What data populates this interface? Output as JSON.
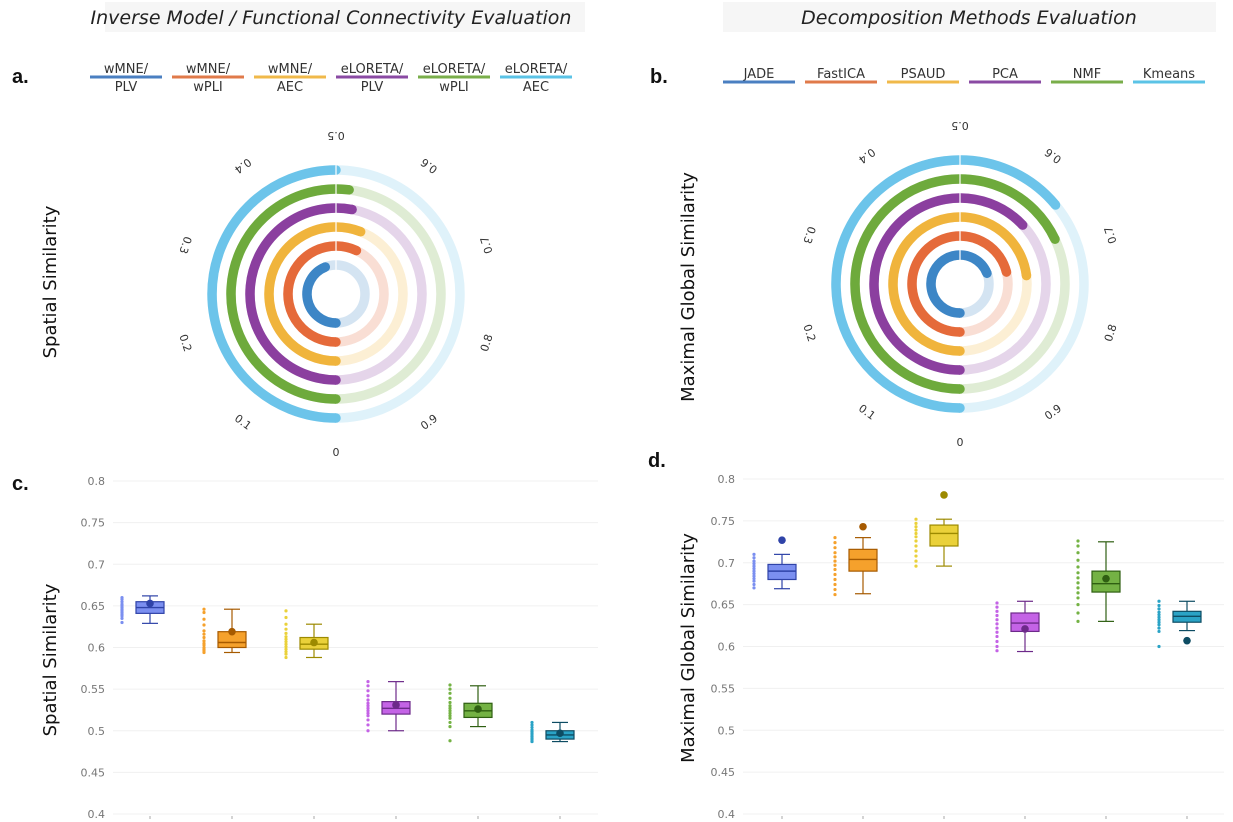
{
  "titles": {
    "left": "Inverse Model / Functional Connectivity Evaluation",
    "right": "Decomposition Methods Evaluation"
  },
  "panel_labels": {
    "a": "a.",
    "b": "b.",
    "c": "c.",
    "d": "d."
  },
  "legend_left": [
    {
      "line1": "wMNE/",
      "line2": "PLV",
      "color": "#4a7fc1"
    },
    {
      "line1": "wMNE/",
      "line2": "wPLI",
      "color": "#e07a4a"
    },
    {
      "line1": "wMNE/",
      "line2": "AEC",
      "color": "#f0b94a"
    },
    {
      "line1": "eLORETA/",
      "line2": "PLV",
      "color": "#8a4aa3"
    },
    {
      "line1": "eLORETA/",
      "line2": "wPLI",
      "color": "#79ae4a"
    },
    {
      "line1": "eLORETA/",
      "line2": "AEC",
      "color": "#5bc3e6"
    }
  ],
  "legend_right": [
    {
      "line1": "JADE",
      "color": "#4a7fc1"
    },
    {
      "line1": "FastICA",
      "color": "#e07a4a"
    },
    {
      "line1": "PSAUD",
      "color": "#f0b94a"
    },
    {
      "line1": "PCA",
      "color": "#8a4aa3"
    },
    {
      "line1": "NMF",
      "color": "#79ae4a"
    },
    {
      "line1": "Kmeans",
      "color": "#5bc3e6"
    }
  ],
  "chart_data": [
    {
      "type": "radial-bar",
      "panel": "a",
      "ylabel": "Spatial Similarity",
      "tick_labels": [
        "0",
        "0.1",
        "0.2",
        "0.3",
        "0.4",
        "0.5",
        "0.6",
        "0.7",
        "0.8",
        "0.9"
      ],
      "series_colors": [
        "#3d86c6",
        "#e56a3a",
        "#f0b43c",
        "#8b3f9f",
        "#6eaa3c",
        "#6cc4ea"
      ],
      "values": [
        0.44,
        0.57,
        0.56,
        0.53,
        0.52,
        0.5
      ]
    },
    {
      "type": "radial-bar",
      "panel": "b",
      "ylabel": "Maximal Global Similarity",
      "tick_labels": [
        "0",
        "0.1",
        "0.2",
        "0.3",
        "0.4",
        "0.5",
        "0.6",
        "0.7",
        "0.8",
        "0.9"
      ],
      "series_colors": [
        "#3d86c6",
        "#e56a3a",
        "#f0b43c",
        "#8b3f9f",
        "#6eaa3c",
        "#6cc4ea"
      ],
      "values": [
        0.69,
        0.71,
        0.73,
        0.63,
        0.68,
        0.64
      ]
    },
    {
      "type": "box",
      "panel": "c",
      "ylabel": "Spatial Similarity",
      "ylim": [
        0.4,
        0.8
      ],
      "yticks": [
        "0.4",
        "0.45",
        "0.5",
        "0.55",
        "0.6",
        "0.65",
        "0.7",
        "0.75",
        "0.8"
      ],
      "boxes": [
        {
          "fill": "#7b8ff0",
          "stroke": "#2f43a8",
          "q1": 0.641,
          "median": 0.648,
          "q3": 0.655,
          "low": 0.629,
          "high": 0.662,
          "mean": 0.653,
          "points": [
            0.63,
            0.635,
            0.638,
            0.64,
            0.642,
            0.644,
            0.646,
            0.648,
            0.65,
            0.652,
            0.655,
            0.658,
            0.66
          ]
        },
        {
          "fill": "#f5a12c",
          "stroke": "#a65a00",
          "q1": 0.6,
          "median": 0.606,
          "q3": 0.619,
          "low": 0.594,
          "high": 0.646,
          "mean": 0.619,
          "points": [
            0.594,
            0.596,
            0.598,
            0.6,
            0.603,
            0.605,
            0.608,
            0.612,
            0.616,
            0.62,
            0.627,
            0.634,
            0.642,
            0.646
          ]
        },
        {
          "fill": "#ead13a",
          "stroke": "#9c8a00",
          "q1": 0.598,
          "median": 0.604,
          "q3": 0.612,
          "low": 0.588,
          "high": 0.628,
          "mean": 0.606,
          "points": [
            0.588,
            0.592,
            0.595,
            0.598,
            0.601,
            0.604,
            0.607,
            0.61,
            0.613,
            0.617,
            0.622,
            0.628,
            0.636,
            0.644
          ]
        },
        {
          "fill": "#c463e6",
          "stroke": "#6d2a8a",
          "q1": 0.52,
          "median": 0.527,
          "q3": 0.535,
          "low": 0.5,
          "high": 0.559,
          "mean": 0.531,
          "points": [
            0.5,
            0.507,
            0.513,
            0.518,
            0.521,
            0.524,
            0.527,
            0.53,
            0.533,
            0.537,
            0.542,
            0.548,
            0.554,
            0.559
          ]
        },
        {
          "fill": "#74b244",
          "stroke": "#2f5f12",
          "q1": 0.516,
          "median": 0.524,
          "q3": 0.533,
          "low": 0.505,
          "high": 0.554,
          "mean": 0.526,
          "points": [
            0.488,
            0.505,
            0.51,
            0.515,
            0.518,
            0.521,
            0.524,
            0.527,
            0.53,
            0.534,
            0.539,
            0.545,
            0.55,
            0.555
          ]
        },
        {
          "fill": "#2aa3c6",
          "stroke": "#0d4c63",
          "q1": 0.49,
          "median": 0.495,
          "q3": 0.5,
          "low": 0.487,
          "high": 0.51,
          "mean": 0.497,
          "points": [
            0.487,
            0.489,
            0.491,
            0.493,
            0.495,
            0.497,
            0.499,
            0.501,
            0.504,
            0.507,
            0.51
          ]
        }
      ]
    },
    {
      "type": "box",
      "panel": "d",
      "ylabel": "Maximal Global Similarity",
      "ylim": [
        0.4,
        0.8
      ],
      "yticks": [
        "0.4",
        "0.45",
        "0.5",
        "0.55",
        "0.6",
        "0.65",
        "0.7",
        "0.75",
        "0.8"
      ],
      "boxes": [
        {
          "fill": "#7b8ff0",
          "stroke": "#2f43a8",
          "q1": 0.68,
          "median": 0.69,
          "q3": 0.698,
          "low": 0.669,
          "high": 0.71,
          "mean": 0.727,
          "points": [
            0.67,
            0.674,
            0.678,
            0.681,
            0.684,
            0.687,
            0.69,
            0.693,
            0.696,
            0.699,
            0.702,
            0.706,
            0.71
          ]
        },
        {
          "fill": "#f5a12c",
          "stroke": "#a65a00",
          "q1": 0.69,
          "median": 0.704,
          "q3": 0.716,
          "low": 0.663,
          "high": 0.73,
          "mean": 0.743,
          "points": [
            0.662,
            0.668,
            0.674,
            0.68,
            0.686,
            0.692,
            0.697,
            0.702,
            0.707,
            0.712,
            0.718,
            0.724,
            0.73
          ]
        },
        {
          "fill": "#ead13a",
          "stroke": "#9c8a00",
          "q1": 0.72,
          "median": 0.735,
          "q3": 0.745,
          "low": 0.696,
          "high": 0.752,
          "mean": 0.781,
          "points": [
            0.696,
            0.702,
            0.708,
            0.714,
            0.72,
            0.726,
            0.731,
            0.735,
            0.739,
            0.743,
            0.747,
            0.752
          ]
        },
        {
          "fill": "#c463e6",
          "stroke": "#6d2a8a",
          "q1": 0.618,
          "median": 0.628,
          "q3": 0.64,
          "low": 0.594,
          "high": 0.654,
          "mean": 0.621,
          "points": [
            0.595,
            0.6,
            0.606,
            0.612,
            0.617,
            0.622,
            0.627,
            0.632,
            0.637,
            0.642,
            0.647,
            0.652
          ]
        },
        {
          "fill": "#74b244",
          "stroke": "#2f5f12",
          "q1": 0.665,
          "median": 0.675,
          "q3": 0.69,
          "low": 0.63,
          "high": 0.725,
          "mean": 0.681,
          "points": [
            0.63,
            0.64,
            0.65,
            0.658,
            0.664,
            0.67,
            0.676,
            0.682,
            0.688,
            0.695,
            0.703,
            0.712,
            0.72,
            0.726
          ]
        },
        {
          "fill": "#2aa3c6",
          "stroke": "#0d4c63",
          "q1": 0.629,
          "median": 0.636,
          "q3": 0.642,
          "low": 0.619,
          "high": 0.654,
          "mean": 0.607,
          "points": [
            0.6,
            0.618,
            0.622,
            0.626,
            0.629,
            0.632,
            0.635,
            0.638,
            0.641,
            0.645,
            0.649,
            0.654
          ]
        }
      ]
    }
  ]
}
